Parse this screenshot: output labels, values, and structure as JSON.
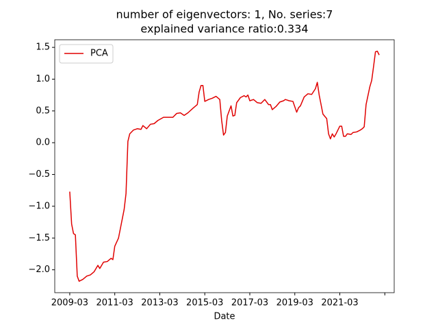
{
  "chart_data": {
    "type": "line",
    "title": [
      "number of eigenvectors: 1, No. series:7",
      "explained variance ratio:0.334"
    ],
    "xlabel": "Date",
    "x": [
      "2009-03",
      "2009-04",
      "2009-05",
      "2009-06",
      "2009-07",
      "2009-08",
      "2009-10",
      "2009-12",
      "2010-02",
      "2010-04",
      "2010-06",
      "2010-07",
      "2010-09",
      "2010-11",
      "2011-01",
      "2011-02",
      "2011-03",
      "2011-05",
      "2011-06",
      "2011-08",
      "2011-09",
      "2011-10",
      "2011-11",
      "2012-01",
      "2012-03",
      "2012-05",
      "2012-06",
      "2012-08",
      "2012-10",
      "2012-12",
      "2013-02",
      "2013-05",
      "2013-07",
      "2013-10",
      "2013-12",
      "2014-02",
      "2014-04",
      "2014-06",
      "2014-09",
      "2014-11",
      "2014-12",
      "2015-01",
      "2015-02",
      "2015-03",
      "2015-05",
      "2015-07",
      "2015-09",
      "2015-11",
      "2015-12",
      "2016-01",
      "2016-02",
      "2016-03",
      "2016-05",
      "2016-06",
      "2016-07",
      "2016-08",
      "2016-10",
      "2016-12",
      "2017-01",
      "2017-02",
      "2017-03",
      "2017-05",
      "2017-07",
      "2017-09",
      "2017-11",
      "2018-01",
      "2018-02",
      "2018-03",
      "2018-05",
      "2018-07",
      "2018-09",
      "2018-10",
      "2018-12",
      "2019-02",
      "2019-04",
      "2019-05",
      "2019-06",
      "2019-08",
      "2019-10",
      "2019-12",
      "2020-02",
      "2020-03",
      "2020-04",
      "2020-06",
      "2020-08",
      "2020-09",
      "2020-10",
      "2020-11",
      "2020-12",
      "2021-01",
      "2021-03",
      "2021-04",
      "2021-05",
      "2021-06",
      "2021-07",
      "2021-09",
      "2021-10",
      "2021-12",
      "2022-02",
      "2022-03",
      "2022-04",
      "2022-05",
      "2022-07",
      "2022-08",
      "2022-09",
      "2022-10",
      "2022-11",
      "2022-12"
    ],
    "series": [
      {
        "name": "PCA",
        "color": "#e00000",
        "values": [
          -0.77,
          -1.28,
          -1.43,
          -1.45,
          -2.1,
          -2.18,
          -2.15,
          -2.1,
          -2.08,
          -2.03,
          -1.93,
          -1.98,
          -1.88,
          -1.87,
          -1.82,
          -1.84,
          -1.63,
          -1.5,
          -1.35,
          -1.05,
          -0.8,
          0.02,
          0.14,
          0.2,
          0.22,
          0.21,
          0.27,
          0.22,
          0.29,
          0.3,
          0.35,
          0.4,
          0.4,
          0.4,
          0.46,
          0.47,
          0.43,
          0.47,
          0.55,
          0.6,
          0.8,
          0.9,
          0.9,
          0.65,
          0.68,
          0.7,
          0.73,
          0.68,
          0.35,
          0.12,
          0.16,
          0.42,
          0.58,
          0.42,
          0.43,
          0.63,
          0.71,
          0.74,
          0.72,
          0.75,
          0.66,
          0.68,
          0.63,
          0.62,
          0.68,
          0.6,
          0.6,
          0.52,
          0.57,
          0.64,
          0.66,
          0.68,
          0.66,
          0.65,
          0.48,
          0.55,
          0.58,
          0.72,
          0.77,
          0.76,
          0.85,
          0.95,
          0.75,
          0.45,
          0.38,
          0.14,
          0.06,
          0.14,
          0.09,
          0.14,
          0.26,
          0.26,
          0.1,
          0.1,
          0.14,
          0.13,
          0.16,
          0.17,
          0.2,
          0.22,
          0.25,
          0.6,
          0.88,
          0.98,
          1.2,
          1.43,
          1.44,
          1.38
        ]
      }
    ],
    "xlim": [
      "2008-07",
      "2023-08"
    ],
    "xticks": [
      "2009-03",
      "2011-03",
      "2013-03",
      "2015-03",
      "2017-03",
      "2019-03",
      "2021-03",
      {
        "value": "2023-03",
        "label": null
      }
    ],
    "ylim": [
      -2.36,
      1.62
    ],
    "yticks": [
      {
        "value": -2.0,
        "label": "−2.0"
      },
      {
        "value": -1.5,
        "label": "−1.5"
      },
      {
        "value": -1.0,
        "label": "−1.0"
      },
      {
        "value": -0.5,
        "label": "−0.5"
      },
      {
        "value": 0.0,
        "label": "0.0"
      },
      0.5,
      {
        "value": 1.0,
        "label": "1.0"
      },
      1.5
    ],
    "legend": "upper left",
    "grid": false
  }
}
